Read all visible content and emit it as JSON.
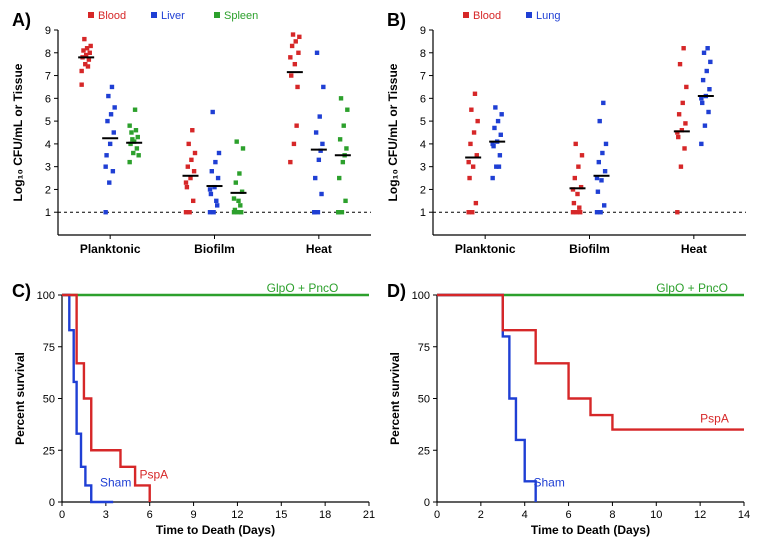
{
  "panelA": {
    "label": "A)",
    "type": "scatter",
    "y_axis": {
      "title": "Log₁₀ CFU/mL or Tissue",
      "min": 0,
      "max": 9,
      "ticks": [
        1,
        2,
        3,
        4,
        5,
        6,
        7,
        8,
        9
      ]
    },
    "baseline": 1,
    "categories": [
      "Planktonic",
      "Biofilm",
      "Heat"
    ],
    "legend": [
      {
        "label": "Blood",
        "color": "#d62728",
        "shape": "square"
      },
      {
        "label": "Liver",
        "color": "#1f3fd4",
        "shape": "square"
      },
      {
        "label": "Spleen",
        "color": "#2ca02c",
        "shape": "square"
      }
    ],
    "groups": [
      {
        "category": "Planktonic",
        "series": [
          {
            "color": "#d62728",
            "median": 7.8,
            "points": [
              7.2,
              7.5,
              7.7,
              7.8,
              7.9,
              8.0,
              8.1,
              8.2,
              8.3,
              8.6,
              7.4,
              6.6
            ]
          },
          {
            "color": "#1f3fd4",
            "median": 4.25,
            "points": [
              1,
              2.3,
              2.8,
              3.5,
              4.0,
              4.5,
              5.0,
              5.3,
              5.6,
              6.1,
              6.5,
              3.0
            ]
          },
          {
            "color": "#2ca02c",
            "median": 4.05,
            "points": [
              3.2,
              3.6,
              3.8,
              4.0,
              4.1,
              4.3,
              4.5,
              5.5,
              3.5,
              4.2,
              4.6,
              4.8
            ]
          }
        ]
      },
      {
        "category": "Biofilm",
        "series": [
          {
            "color": "#d62728",
            "median": 2.6,
            "points": [
              1,
              1,
              1.5,
              2.1,
              2.5,
              2.8,
              3.0,
              3.3,
              3.6,
              4.0,
              4.6,
              2.3
            ]
          },
          {
            "color": "#1f3fd4",
            "median": 2.15,
            "points": [
              1,
              1,
              1.3,
              1.8,
              2.1,
              2.5,
              2.8,
              3.2,
              3.6,
              5.4,
              1.5,
              2.0
            ]
          },
          {
            "color": "#2ca02c",
            "median": 1.85,
            "points": [
              1,
              1,
              1,
              1.1,
              1.5,
              1.9,
              2.3,
              2.7,
              3.8,
              4.1,
              1.3,
              1.6
            ]
          }
        ]
      },
      {
        "category": "Heat",
        "series": [
          {
            "color": "#d62728",
            "median": 7.15,
            "points": [
              3.2,
              4.0,
              6.5,
              7.0,
              7.5,
              8.0,
              8.3,
              8.5,
              8.7,
              8.8,
              4.8,
              7.8
            ]
          },
          {
            "color": "#1f3fd4",
            "median": 3.75,
            "points": [
              1,
              1,
              1.8,
              2.5,
              3.3,
              4.0,
              4.5,
              5.2,
              6.5,
              8.0,
              3.7,
              1
            ]
          },
          {
            "color": "#2ca02c",
            "median": 3.5,
            "points": [
              1,
              1,
              1.5,
              2.5,
              3.2,
              3.8,
              4.2,
              4.8,
              5.5,
              6.0,
              3.5,
              1
            ]
          }
        ]
      }
    ]
  },
  "panelB": {
    "label": "B)",
    "type": "scatter",
    "y_axis": {
      "title": "Log₁₀ CFU/mL or Tissue",
      "min": 0,
      "max": 9,
      "ticks": [
        1,
        2,
        3,
        4,
        5,
        6,
        7,
        8,
        9
      ]
    },
    "baseline": 1,
    "categories": [
      "Planktonic",
      "Biofilm",
      "Heat"
    ],
    "legend": [
      {
        "label": "Blood",
        "color": "#d62728",
        "shape": "square"
      },
      {
        "label": "Lung",
        "color": "#1f3fd4",
        "shape": "square"
      }
    ],
    "groups": [
      {
        "category": "Planktonic",
        "series": [
          {
            "color": "#d62728",
            "median": 3.4,
            "points": [
              1,
              1,
              1.4,
              2.5,
              3.0,
              3.5,
              4.0,
              4.5,
              5.0,
              5.5,
              6.2,
              3.2
            ]
          },
          {
            "color": "#1f3fd4",
            "median": 4.1,
            "points": [
              2.5,
              3.0,
              3.5,
              3.9,
              4.1,
              4.4,
              4.7,
              5.0,
              5.3,
              5.6,
              3.0,
              4.0
            ]
          }
        ]
      },
      {
        "category": "Biofilm",
        "series": [
          {
            "color": "#d62728",
            "median": 2.05,
            "points": [
              1,
              1,
              1,
              1.4,
              1.8,
              2.1,
              2.5,
              3.0,
              3.5,
              4.0,
              1.2,
              2.0
            ]
          },
          {
            "color": "#1f3fd4",
            "median": 2.6,
            "points": [
              1,
              1,
              1.3,
              1.9,
              2.4,
              2.8,
              3.2,
              3.6,
              4.0,
              5.0,
              5.8,
              2.5
            ]
          }
        ]
      },
      {
        "category": "Heat",
        "series": [
          {
            "color": "#d62728",
            "median": 4.55,
            "points": [
              1,
              3.0,
              3.8,
              4.3,
              4.6,
              4.9,
              5.3,
              5.8,
              6.5,
              7.5,
              8.2,
              4.5
            ]
          },
          {
            "color": "#1f3fd4",
            "median": 6.1,
            "points": [
              4.0,
              4.8,
              5.4,
              5.8,
              6.1,
              6.4,
              6.8,
              7.2,
              7.6,
              8.0,
              8.2,
              6.0
            ]
          }
        ]
      }
    ]
  },
  "panelC": {
    "label": "C)",
    "type": "survival",
    "y_axis": {
      "title": "Percent survival",
      "min": 0,
      "max": 100,
      "ticks": [
        0,
        25,
        50,
        75,
        100
      ]
    },
    "x_axis": {
      "title": "Time to Death (Days)",
      "min": 0,
      "max": 21,
      "ticks": [
        0,
        3,
        6,
        9,
        12,
        15,
        18,
        21
      ]
    },
    "curves": [
      {
        "label": "GlpO + PncO",
        "color": "#2ca02c",
        "label_color": "#2ca02c",
        "label_pos": {
          "x": 14,
          "y": 100
        },
        "steps": [
          [
            0,
            100
          ],
          [
            21,
            100
          ]
        ]
      },
      {
        "label": "Sham",
        "color": "#1f3fd4",
        "label_color": "#1f3fd4",
        "label_pos": {
          "x": 2.6,
          "y": 6
        },
        "steps": [
          [
            0,
            100
          ],
          [
            0.5,
            100
          ],
          [
            0.5,
            83
          ],
          [
            0.8,
            83
          ],
          [
            0.8,
            58
          ],
          [
            1.0,
            58
          ],
          [
            1.0,
            33
          ],
          [
            1.3,
            33
          ],
          [
            1.3,
            17
          ],
          [
            1.6,
            17
          ],
          [
            1.6,
            8
          ],
          [
            2.0,
            8
          ],
          [
            2.0,
            0
          ],
          [
            3.5,
            0
          ]
        ]
      },
      {
        "label": "PspA",
        "color": "#d62728",
        "label_color": "#d62728",
        "label_pos": {
          "x": 5.3,
          "y": 10
        },
        "steps": [
          [
            0,
            100
          ],
          [
            1.0,
            100
          ],
          [
            1.0,
            67
          ],
          [
            1.5,
            67
          ],
          [
            1.5,
            50
          ],
          [
            2.0,
            50
          ],
          [
            2.0,
            25
          ],
          [
            4.0,
            25
          ],
          [
            4.0,
            17
          ],
          [
            5.0,
            17
          ],
          [
            5.0,
            8
          ],
          [
            6.0,
            8
          ],
          [
            6.0,
            0
          ]
        ]
      }
    ]
  },
  "panelD": {
    "label": "D)",
    "type": "survival",
    "y_axis": {
      "title": "Percent survival",
      "min": 0,
      "max": 100,
      "ticks": [
        0,
        25,
        50,
        75,
        100
      ]
    },
    "x_axis": {
      "title": "Time to Death (Days)",
      "min": 0,
      "max": 14,
      "ticks": [
        0,
        2,
        4,
        6,
        8,
        10,
        12,
        14
      ]
    },
    "curves": [
      {
        "label": "GlpO + PncO",
        "color": "#2ca02c",
        "label_color": "#2ca02c",
        "label_pos": {
          "x": 10,
          "y": 100
        },
        "steps": [
          [
            0,
            100
          ],
          [
            14,
            100
          ]
        ]
      },
      {
        "label": "Sham",
        "color": "#1f3fd4",
        "label_color": "#1f3fd4",
        "label_pos": {
          "x": 4.4,
          "y": 6
        },
        "steps": [
          [
            0,
            100
          ],
          [
            3.0,
            100
          ],
          [
            3.0,
            80
          ],
          [
            3.3,
            80
          ],
          [
            3.3,
            50
          ],
          [
            3.6,
            50
          ],
          [
            3.6,
            30
          ],
          [
            4.0,
            30
          ],
          [
            4.0,
            10
          ],
          [
            4.5,
            10
          ],
          [
            4.5,
            0
          ]
        ]
      },
      {
        "label": "PspA",
        "color": "#d62728",
        "label_color": "#d62728",
        "label_pos": {
          "x": 12,
          "y": 37
        },
        "steps": [
          [
            0,
            100
          ],
          [
            3.0,
            100
          ],
          [
            3.0,
            83
          ],
          [
            4.5,
            83
          ],
          [
            4.5,
            67
          ],
          [
            6.0,
            67
          ],
          [
            6.0,
            50
          ],
          [
            7.0,
            50
          ],
          [
            7.0,
            42
          ],
          [
            8.0,
            42
          ],
          [
            8.0,
            35
          ],
          [
            14,
            35
          ]
        ]
      }
    ]
  }
}
